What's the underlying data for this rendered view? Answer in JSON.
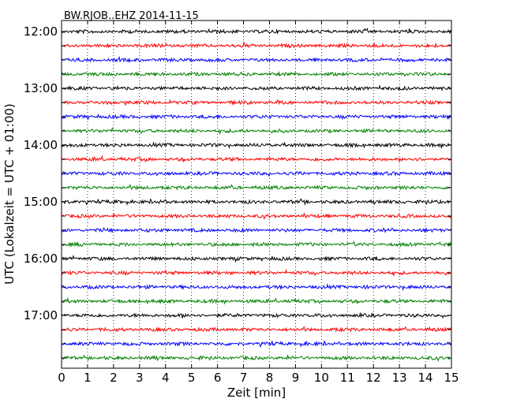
{
  "chart_data": {
    "type": "line",
    "title": "BW.RJOB..EHZ 2014-11-15",
    "xlabel": "Zeit  [min]",
    "ylabel": "UTC (Lokalzeit = UTC + 01:00)",
    "xlim": [
      0,
      15
    ],
    "x_ticks": [
      "0",
      "1",
      "2",
      "3",
      "4",
      "5",
      "6",
      "7",
      "8",
      "9",
      "10",
      "11",
      "12",
      "13",
      "14",
      "15"
    ],
    "y_tick_labels": [
      "12:00",
      "13:00",
      "14:00",
      "15:00",
      "16:00",
      "17:00"
    ],
    "trace_start_times": [
      "12:00",
      "12:15",
      "12:30",
      "12:45",
      "13:00",
      "13:15",
      "13:30",
      "13:45",
      "14:00",
      "14:15",
      "14:30",
      "14:45",
      "15:00",
      "15:15",
      "15:30",
      "15:45",
      "16:00",
      "16:15",
      "16:30",
      "16:45",
      "17:00",
      "17:15",
      "17:30",
      "17:45"
    ],
    "trace_duration_min": 15,
    "trace_colors": [
      "#000000",
      "#ff0000",
      "#0000ff",
      "#008000"
    ],
    "grid": "dotted vertical at each minute"
  }
}
